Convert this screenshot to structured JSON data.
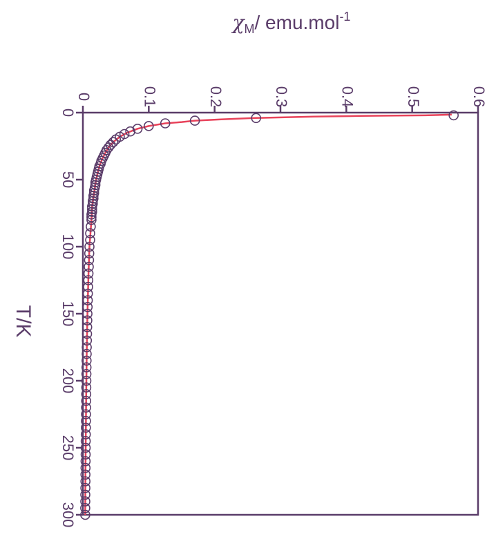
{
  "chart_data": {
    "type": "scatter",
    "orientation": "rotated-90",
    "xlabel": "T/K",
    "ylabel_symbol": "χ",
    "ylabel_subscript": "M",
    "ylabel_unit": "/ emu.mol",
    "ylabel_exponent": "-1",
    "xlim": [
      0,
      300
    ],
    "ylim": [
      0,
      0.6
    ],
    "x_ticks": [
      "0",
      "50",
      "100",
      "150",
      "200",
      "250",
      "300"
    ],
    "y_ticks": [
      "0",
      "0.1",
      "0.2",
      "0.3",
      "0.4",
      "0.5",
      "0.6"
    ],
    "grid": false,
    "legend": "none",
    "colors": {
      "axis": "#5a3c69",
      "markers": "#5a3c69",
      "fit": "#e8425a"
    },
    "series": [
      {
        "kind": "markers",
        "x": [
          2,
          4,
          6,
          8,
          10,
          12,
          14,
          16,
          18,
          20,
          22,
          24,
          26,
          28,
          30,
          32,
          34,
          36,
          38,
          40,
          42,
          44,
          46,
          48,
          50,
          52,
          54,
          56,
          58,
          60,
          62,
          64,
          66,
          68,
          70,
          72,
          74,
          76,
          78,
          80,
          85,
          90,
          95,
          100,
          105,
          110,
          115,
          120,
          125,
          130,
          135,
          140,
          145,
          150,
          155,
          160,
          165,
          170,
          175,
          180,
          185,
          190,
          195,
          200,
          205,
          210,
          215,
          220,
          225,
          230,
          235,
          240,
          245,
          250,
          255,
          260,
          265,
          270,
          275,
          280,
          285,
          290,
          295,
          300
        ],
        "y": [
          0.563,
          0.263,
          0.17,
          0.125,
          0.1,
          0.083,
          0.072,
          0.063,
          0.056,
          0.05,
          0.046,
          0.042,
          0.039,
          0.036,
          0.034,
          0.032,
          0.03,
          0.028,
          0.027,
          0.025,
          0.024,
          0.023,
          0.022,
          0.021,
          0.02,
          0.019,
          0.019,
          0.018,
          0.017,
          0.017,
          0.016,
          0.016,
          0.015,
          0.015,
          0.014,
          0.014,
          0.014,
          0.013,
          0.013,
          0.013,
          0.012,
          0.011,
          0.011,
          0.01,
          0.0097,
          0.0093,
          0.0089,
          0.0085,
          0.0082,
          0.0079,
          0.0076,
          0.0074,
          0.0071,
          0.0069,
          0.0067,
          0.0065,
          0.0063,
          0.0061,
          0.0059,
          0.0058,
          0.0056,
          0.0055,
          0.0054,
          0.0052,
          0.0051,
          0.005,
          0.0049,
          0.0048,
          0.0047,
          0.0046,
          0.0045,
          0.0044,
          0.0043,
          0.0042,
          0.0042,
          0.0041,
          0.004,
          0.0039,
          0.0039,
          0.0038,
          0.0037,
          0.0037,
          0.0036,
          0.0036
        ]
      },
      {
        "kind": "fit-line",
        "x": [
          1.5,
          2,
          2.5,
          3,
          4,
          5,
          6,
          7,
          8,
          10,
          12,
          15,
          18,
          22,
          26,
          30,
          35,
          40,
          50,
          60,
          70,
          80,
          100,
          120,
          150,
          180,
          210,
          240,
          270,
          300
        ],
        "y": [
          0.56,
          0.52,
          0.42,
          0.35,
          0.26,
          0.21,
          0.17,
          0.15,
          0.125,
          0.1,
          0.083,
          0.067,
          0.056,
          0.046,
          0.039,
          0.034,
          0.029,
          0.025,
          0.02,
          0.017,
          0.014,
          0.013,
          0.01,
          0.0085,
          0.0069,
          0.0058,
          0.005,
          0.0044,
          0.0039,
          0.0036
        ]
      }
    ]
  }
}
